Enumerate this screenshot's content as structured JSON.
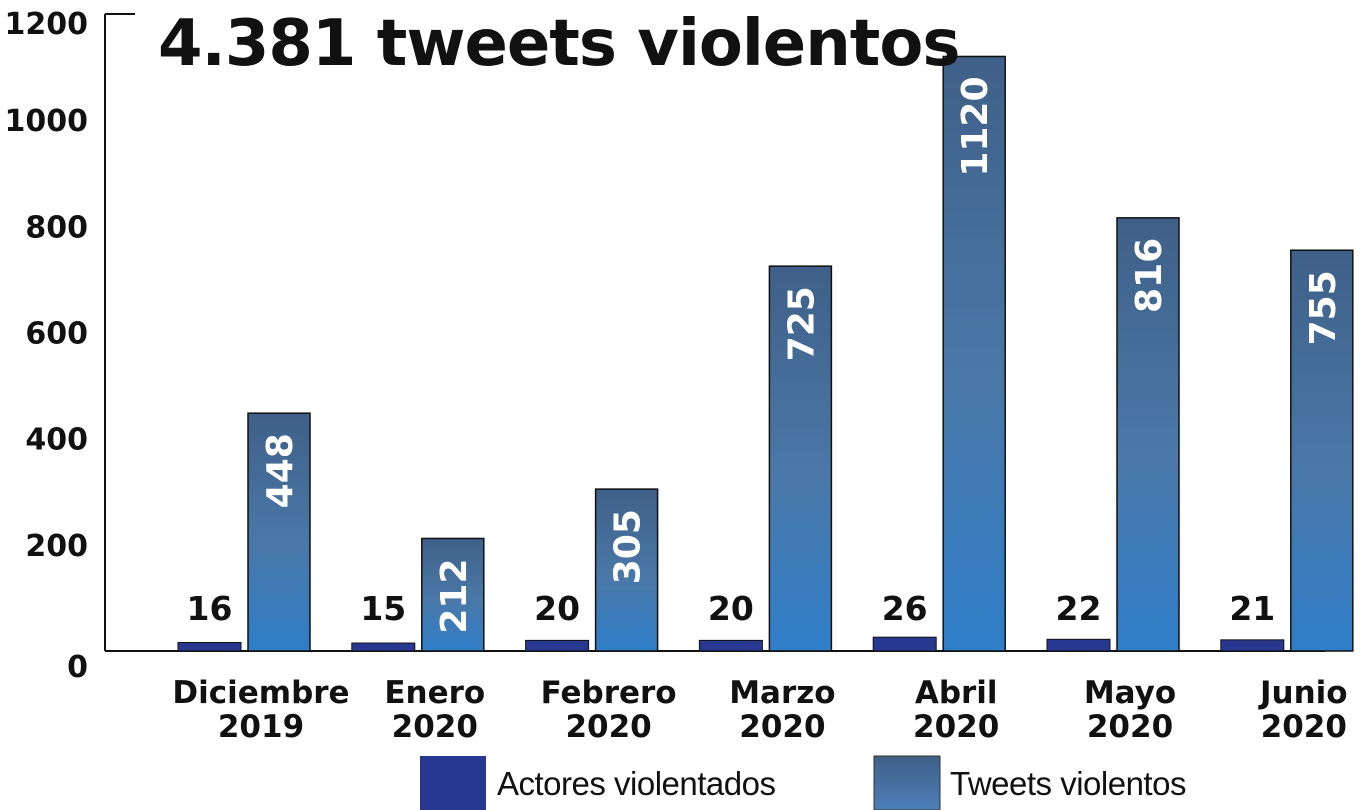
{
  "chart_data": {
    "type": "bar",
    "title": "4.381 tweets violentos",
    "categories": [
      [
        "Diciembre",
        "2019"
      ],
      [
        "Enero",
        "2020"
      ],
      [
        "Febrero",
        "2020"
      ],
      [
        "Marzo",
        "2020"
      ],
      [
        "Abril",
        "2020"
      ],
      [
        "Mayo",
        "2020"
      ],
      [
        "Junio",
        "2020"
      ]
    ],
    "series": [
      {
        "name": "Actores violentados",
        "values": [
          16,
          15,
          20,
          20,
          26,
          22,
          21
        ],
        "color": "#283891"
      },
      {
        "name": "Tweets violentos",
        "values": [
          448,
          212,
          305,
          725,
          1120,
          816,
          755
        ],
        "color_top": "#3f6088",
        "color_bottom": "#2f7ec9"
      }
    ],
    "ylim": [
      0,
      1200
    ],
    "yticks": [
      "0",
      "200",
      "400",
      "600",
      "800",
      "1000",
      "1200"
    ],
    "grid": false,
    "legend_position": "bottom"
  }
}
